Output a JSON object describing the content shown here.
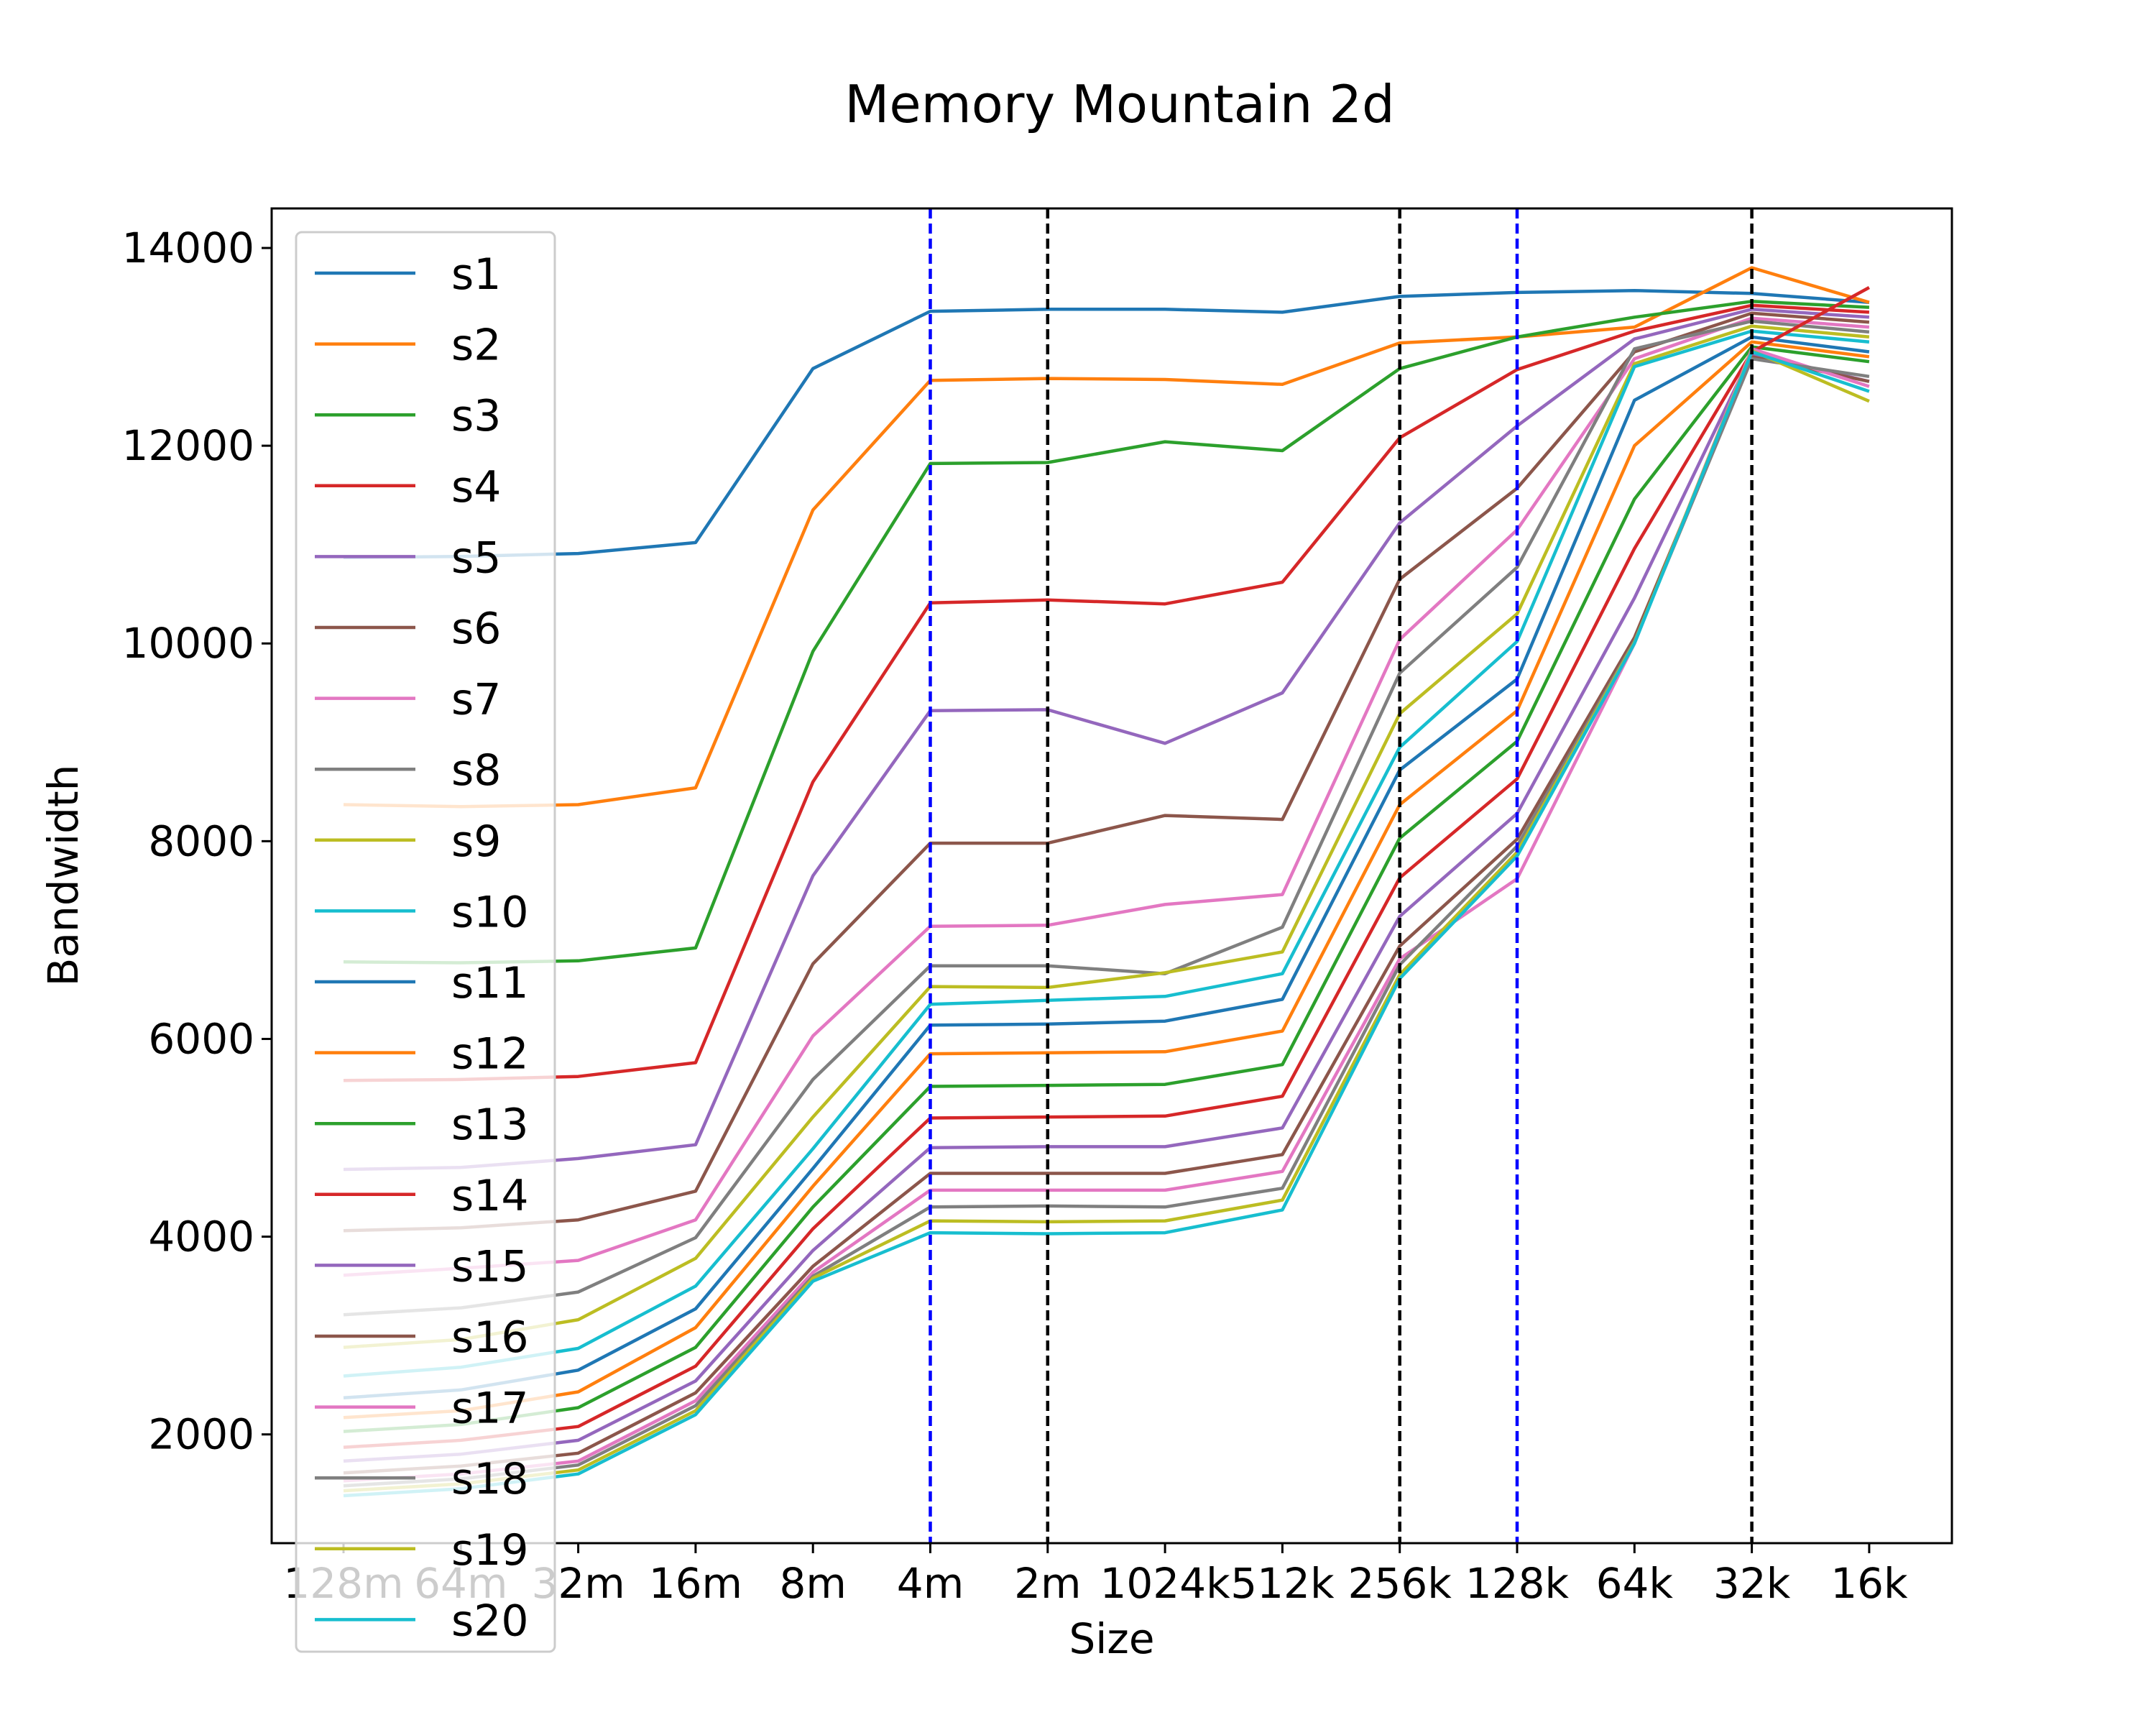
{
  "chart_data": {
    "type": "line",
    "title": "Memory Mountain 2d",
    "xlabel": "Size",
    "ylabel": "Bandwidth",
    "categories": [
      "128m",
      "64m",
      "32m",
      "16m",
      "8m",
      "4m",
      "2m",
      "1024k",
      "512k",
      "256k",
      "128k",
      "64k",
      "32k",
      "16k"
    ],
    "ylim": [
      900,
      14400
    ],
    "yticks": [
      2000,
      4000,
      6000,
      8000,
      10000,
      12000,
      14000
    ],
    "grid": false,
    "legend_position": "upper-left",
    "vlines": [
      {
        "at": "4m",
        "color": "#0000ff",
        "style": "dashed"
      },
      {
        "at": "2m",
        "color": "#000000",
        "style": "dashed"
      },
      {
        "at": "256k",
        "color": "#000000",
        "style": "dashed"
      },
      {
        "at": "128k",
        "color": "#0000ff",
        "style": "dashed"
      },
      {
        "at": "32k",
        "color": "#000000",
        "style": "dashed"
      }
    ],
    "series": [
      {
        "name": "s1",
        "color": "#1f77b4",
        "values": [
          10870,
          10880,
          10910,
          11020,
          12780,
          13360,
          13380,
          13380,
          13350,
          13510,
          13550,
          13570,
          13540,
          13450
        ]
      },
      {
        "name": "s2",
        "color": "#ff7f0e",
        "values": [
          8370,
          8350,
          8370,
          8540,
          11350,
          12660,
          12680,
          12670,
          12620,
          13040,
          13100,
          13200,
          13800,
          13450
        ]
      },
      {
        "name": "s3",
        "color": "#2ca02c",
        "values": [
          6780,
          6770,
          6790,
          6920,
          9920,
          11820,
          11830,
          12040,
          11950,
          12780,
          13100,
          13300,
          13460,
          13400
        ]
      },
      {
        "name": "s4",
        "color": "#d62728",
        "values": [
          5580,
          5590,
          5620,
          5760,
          8600,
          10410,
          10440,
          10400,
          10620,
          12080,
          12770,
          13160,
          13420,
          13350
        ]
      },
      {
        "name": "s5",
        "color": "#9467bd",
        "values": [
          4680,
          4700,
          4790,
          4930,
          7650,
          9320,
          9330,
          8990,
          9500,
          11220,
          12200,
          13080,
          13380,
          13300
        ]
      },
      {
        "name": "s6",
        "color": "#8c564b",
        "values": [
          4060,
          4090,
          4170,
          4460,
          6760,
          7980,
          7980,
          8260,
          8220,
          10650,
          11570,
          12950,
          13340,
          13250
        ]
      },
      {
        "name": "s7",
        "color": "#e377c2",
        "values": [
          3610,
          3680,
          3760,
          4170,
          6030,
          7140,
          7150,
          7360,
          7460,
          10040,
          11150,
          12880,
          13290,
          13200
        ]
      },
      {
        "name": "s8",
        "color": "#7f7f7f",
        "values": [
          3210,
          3280,
          3440,
          3990,
          5590,
          6740,
          6740,
          6660,
          7130,
          9700,
          10770,
          12980,
          13260,
          13150
        ]
      },
      {
        "name": "s9",
        "color": "#bcbd22",
        "values": [
          2880,
          2960,
          3160,
          3780,
          5210,
          6530,
          6520,
          6670,
          6880,
          9290,
          10300,
          12830,
          13210,
          13100
        ]
      },
      {
        "name": "s10",
        "color": "#17becf",
        "values": [
          2590,
          2680,
          2870,
          3500,
          4890,
          6350,
          6390,
          6430,
          6660,
          8950,
          10020,
          12800,
          13160,
          13050
        ]
      },
      {
        "name": "s11",
        "color": "#1f77b4",
        "values": [
          2370,
          2450,
          2650,
          3270,
          4690,
          6140,
          6150,
          6180,
          6400,
          8720,
          9640,
          12460,
          13100,
          12950
        ]
      },
      {
        "name": "s12",
        "color": "#ff7f0e",
        "values": [
          2170,
          2240,
          2430,
          3080,
          4510,
          5850,
          5860,
          5870,
          6080,
          8370,
          9320,
          12000,
          13050,
          12900
        ]
      },
      {
        "name": "s13",
        "color": "#2ca02c",
        "values": [
          2030,
          2100,
          2270,
          2880,
          4300,
          5520,
          5530,
          5540,
          5740,
          8030,
          9010,
          11460,
          13000,
          12850
        ]
      },
      {
        "name": "s14",
        "color": "#d62728",
        "values": [
          1870,
          1940,
          2080,
          2690,
          4080,
          5200,
          5210,
          5220,
          5420,
          7630,
          8630,
          10960,
          12950,
          13600
        ]
      },
      {
        "name": "s15",
        "color": "#9467bd",
        "values": [
          1730,
          1800,
          1940,
          2540,
          3860,
          4900,
          4910,
          4910,
          5100,
          7240,
          8280,
          10460,
          12930,
          12650
        ]
      },
      {
        "name": "s16",
        "color": "#8c564b",
        "values": [
          1610,
          1680,
          1810,
          2420,
          3700,
          4640,
          4640,
          4640,
          4830,
          6940,
          8020,
          10060,
          12900,
          12650
        ]
      },
      {
        "name": "s17",
        "color": "#e377c2",
        "values": [
          1530,
          1600,
          1730,
          2340,
          3640,
          4470,
          4470,
          4470,
          4660,
          6810,
          7620,
          10000,
          12980,
          12600
        ]
      },
      {
        "name": "s18",
        "color": "#7f7f7f",
        "values": [
          1480,
          1550,
          1690,
          2290,
          3600,
          4300,
          4310,
          4300,
          4490,
          6750,
          7950,
          10020,
          12880,
          12700
        ]
      },
      {
        "name": "s19",
        "color": "#bcbd22",
        "values": [
          1430,
          1500,
          1640,
          2240,
          3580,
          4160,
          4150,
          4160,
          4370,
          6650,
          7890,
          10010,
          12960,
          12450
        ]
      },
      {
        "name": "s20",
        "color": "#17becf",
        "values": [
          1380,
          1450,
          1600,
          2200,
          3550,
          4040,
          4030,
          4040,
          4270,
          6610,
          7850,
          10000,
          12950,
          12550
        ]
      }
    ]
  }
}
